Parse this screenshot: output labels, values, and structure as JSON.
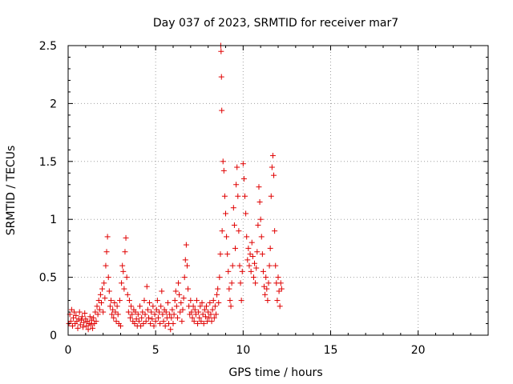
{
  "chart_data": {
    "type": "scatter",
    "title": "Day 037 of 2023, SRMTID for receiver mar7",
    "xlabel": "GPS time / hours",
    "ylabel": "SRMTID / TECUs",
    "xlim": [
      0,
      24
    ],
    "ylim": [
      0,
      2.5
    ],
    "xticks": [
      0,
      5,
      10,
      15,
      20
    ],
    "xtick_labels": [
      "0",
      "5",
      "10",
      "15",
      "20"
    ],
    "yticks": [
      0,
      0.5,
      1,
      1.5,
      2,
      2.5
    ],
    "ytick_labels": [
      "0",
      "0.5",
      "1",
      "1.5",
      "2",
      "2.5"
    ],
    "grid": true,
    "marker": "plus",
    "color": "#e00000",
    "series": [
      {
        "name": "SRMTID",
        "points": [
          [
            0.05,
            0.1
          ],
          [
            0.1,
            0.18
          ],
          [
            0.15,
            0.12
          ],
          [
            0.2,
            0.22
          ],
          [
            0.25,
            0.08
          ],
          [
            0.3,
            0.15
          ],
          [
            0.35,
            0.2
          ],
          [
            0.4,
            0.1
          ],
          [
            0.45,
            0.17
          ],
          [
            0.5,
            0.12
          ],
          [
            0.55,
            0.06
          ],
          [
            0.6,
            0.14
          ],
          [
            0.65,
            0.2
          ],
          [
            0.7,
            0.09
          ],
          [
            0.75,
            0.13
          ],
          [
            0.8,
            0.16
          ],
          [
            0.85,
            0.07
          ],
          [
            0.9,
            0.11
          ],
          [
            0.95,
            0.19
          ],
          [
            1.0,
            0.14
          ],
          [
            1.05,
            0.08
          ],
          [
            1.1,
            0.12
          ],
          [
            1.15,
            0.05
          ],
          [
            1.2,
            0.1
          ],
          [
            1.25,
            0.16
          ],
          [
            1.3,
            0.09
          ],
          [
            1.35,
            0.13
          ],
          [
            1.4,
            0.06
          ],
          [
            1.45,
            0.15
          ],
          [
            1.5,
            0.1
          ],
          [
            1.55,
            0.2
          ],
          [
            1.6,
            0.12
          ],
          [
            1.65,
            0.25
          ],
          [
            1.7,
            0.18
          ],
          [
            1.75,
            0.3
          ],
          [
            1.8,
            0.22
          ],
          [
            1.85,
            0.35
          ],
          [
            1.9,
            0.28
          ],
          [
            1.95,
            0.4
          ],
          [
            2.0,
            0.2
          ],
          [
            2.05,
            0.45
          ],
          [
            2.1,
            0.32
          ],
          [
            2.15,
            0.6
          ],
          [
            2.2,
            0.72
          ],
          [
            2.25,
            0.85
          ],
          [
            2.3,
            0.5
          ],
          [
            2.35,
            0.38
          ],
          [
            2.4,
            0.25
          ],
          [
            2.45,
            0.3
          ],
          [
            2.5,
            0.18
          ],
          [
            2.55,
            0.22
          ],
          [
            2.6,
            0.15
          ],
          [
            2.65,
            0.28
          ],
          [
            2.7,
            0.2
          ],
          [
            2.75,
            0.12
          ],
          [
            2.8,
            0.25
          ],
          [
            2.85,
            0.18
          ],
          [
            2.9,
            0.1
          ],
          [
            2.95,
            0.3
          ],
          [
            3.0,
            0.08
          ],
          [
            3.05,
            0.45
          ],
          [
            3.1,
            0.6
          ],
          [
            3.15,
            0.55
          ],
          [
            3.2,
            0.4
          ],
          [
            3.25,
            0.72
          ],
          [
            3.3,
            0.84
          ],
          [
            3.35,
            0.5
          ],
          [
            3.4,
            0.35
          ],
          [
            3.45,
            0.2
          ],
          [
            3.5,
            0.3
          ],
          [
            3.55,
            0.15
          ],
          [
            3.6,
            0.25
          ],
          [
            3.65,
            0.18
          ],
          [
            3.7,
            0.12
          ],
          [
            3.75,
            0.22
          ],
          [
            3.8,
            0.1
          ],
          [
            3.85,
            0.2
          ],
          [
            3.9,
            0.14
          ],
          [
            3.95,
            0.08
          ],
          [
            4.0,
            0.18
          ],
          [
            4.05,
            0.12
          ],
          [
            4.1,
            0.25
          ],
          [
            4.15,
            0.08
          ],
          [
            4.2,
            0.15
          ],
          [
            4.25,
            0.2
          ],
          [
            4.3,
            0.1
          ],
          [
            4.35,
            0.3
          ],
          [
            4.4,
            0.18
          ],
          [
            4.45,
            0.12
          ],
          [
            4.5,
            0.42
          ],
          [
            4.55,
            0.22
          ],
          [
            4.6,
            0.15
          ],
          [
            4.65,
            0.28
          ],
          [
            4.7,
            0.1
          ],
          [
            4.75,
            0.2
          ],
          [
            4.8,
            0.14
          ],
          [
            4.85,
            0.25
          ],
          [
            4.9,
            0.08
          ],
          [
            4.95,
            0.18
          ],
          [
            5.0,
            0.12
          ],
          [
            5.05,
            0.22
          ],
          [
            5.1,
            0.3
          ],
          [
            5.15,
            0.15
          ],
          [
            5.2,
            0.2
          ],
          [
            5.25,
            0.1
          ],
          [
            5.3,
            0.25
          ],
          [
            5.35,
            0.38
          ],
          [
            5.4,
            0.18
          ],
          [
            5.45,
            0.12
          ],
          [
            5.5,
            0.22
          ],
          [
            5.55,
            0.08
          ],
          [
            5.6,
            0.2
          ],
          [
            5.65,
            0.15
          ],
          [
            5.7,
            0.28
          ],
          [
            5.75,
            0.1
          ],
          [
            5.8,
            0.18
          ],
          [
            5.85,
            0.05
          ],
          [
            5.9,
            0.15
          ],
          [
            5.95,
            0.22
          ],
          [
            6.0,
            0.1
          ],
          [
            6.05,
            0.18
          ],
          [
            6.1,
            0.3
          ],
          [
            6.15,
            0.38
          ],
          [
            6.2,
            0.25
          ],
          [
            6.25,
            0.15
          ],
          [
            6.3,
            0.45
          ],
          [
            6.35,
            0.35
          ],
          [
            6.4,
            0.2
          ],
          [
            6.45,
            0.28
          ],
          [
            6.5,
            0.12
          ],
          [
            6.55,
            0.22
          ],
          [
            6.6,
            0.32
          ],
          [
            6.65,
            0.5
          ],
          [
            6.7,
            0.65
          ],
          [
            6.75,
            0.78
          ],
          [
            6.8,
            0.6
          ],
          [
            6.85,
            0.4
          ],
          [
            6.9,
            0.25
          ],
          [
            6.95,
            0.18
          ],
          [
            7.0,
            0.3
          ],
          [
            7.05,
            0.2
          ],
          [
            7.1,
            0.15
          ],
          [
            7.15,
            0.25
          ],
          [
            7.2,
            0.12
          ],
          [
            7.25,
            0.22
          ],
          [
            7.3,
            0.18
          ],
          [
            7.35,
            0.3
          ],
          [
            7.4,
            0.1
          ],
          [
            7.45,
            0.2
          ],
          [
            7.5,
            0.15
          ],
          [
            7.55,
            0.25
          ],
          [
            7.6,
            0.12
          ],
          [
            7.65,
            0.28
          ],
          [
            7.7,
            0.18
          ],
          [
            7.75,
            0.1
          ],
          [
            7.8,
            0.22
          ],
          [
            7.85,
            0.16
          ],
          [
            7.9,
            0.25
          ],
          [
            7.95,
            0.12
          ],
          [
            8.0,
            0.2
          ],
          [
            8.05,
            0.15
          ],
          [
            8.1,
            0.28
          ],
          [
            8.15,
            0.18
          ],
          [
            8.2,
            0.12
          ],
          [
            8.25,
            0.22
          ],
          [
            8.3,
            0.3
          ],
          [
            8.35,
            0.15
          ],
          [
            8.4,
            0.25
          ],
          [
            8.45,
            0.18
          ],
          [
            8.5,
            0.35
          ],
          [
            8.55,
            0.4
          ],
          [
            8.6,
            0.28
          ],
          [
            8.65,
            0.5
          ],
          [
            8.7,
            0.7
          ],
          [
            8.72,
            2.5
          ],
          [
            8.74,
            2.45
          ],
          [
            8.76,
            2.23
          ],
          [
            8.78,
            1.94
          ],
          [
            8.8,
            0.9
          ],
          [
            8.85,
            1.5
          ],
          [
            8.9,
            1.42
          ],
          [
            8.95,
            1.2
          ],
          [
            9.0,
            1.05
          ],
          [
            9.05,
            0.85
          ],
          [
            9.1,
            0.7
          ],
          [
            9.15,
            0.55
          ],
          [
            9.2,
            0.4
          ],
          [
            9.25,
            0.3
          ],
          [
            9.3,
            0.25
          ],
          [
            9.35,
            0.45
          ],
          [
            9.4,
            0.6
          ],
          [
            9.45,
            1.1
          ],
          [
            9.5,
            0.95
          ],
          [
            9.55,
            0.75
          ],
          [
            9.6,
            1.3
          ],
          [
            9.65,
            1.45
          ],
          [
            9.7,
            1.2
          ],
          [
            9.75,
            0.9
          ],
          [
            9.8,
            0.6
          ],
          [
            9.85,
            0.45
          ],
          [
            9.9,
            0.3
          ],
          [
            9.95,
            0.55
          ],
          [
            10.0,
            1.48
          ],
          [
            10.05,
            1.35
          ],
          [
            10.1,
            1.2
          ],
          [
            10.15,
            1.05
          ],
          [
            10.2,
            0.85
          ],
          [
            10.25,
            0.65
          ],
          [
            10.3,
            0.75
          ],
          [
            10.35,
            0.6
          ],
          [
            10.4,
            0.7
          ],
          [
            10.45,
            0.55
          ],
          [
            10.5,
            0.8
          ],
          [
            10.55,
            0.68
          ],
          [
            10.6,
            0.5
          ],
          [
            10.65,
            0.62
          ],
          [
            10.7,
            0.45
          ],
          [
            10.75,
            0.58
          ],
          [
            10.8,
            0.72
          ],
          [
            10.85,
            0.95
          ],
          [
            10.9,
            1.28
          ],
          [
            10.95,
            1.15
          ],
          [
            11.0,
            1.0
          ],
          [
            11.05,
            0.85
          ],
          [
            11.1,
            0.7
          ],
          [
            11.15,
            0.55
          ],
          [
            11.2,
            0.42
          ],
          [
            11.25,
            0.35
          ],
          [
            11.3,
            0.5
          ],
          [
            11.35,
            0.4
          ],
          [
            11.4,
            0.3
          ],
          [
            11.45,
            0.45
          ],
          [
            11.5,
            0.6
          ],
          [
            11.55,
            0.75
          ],
          [
            11.6,
            1.2
          ],
          [
            11.65,
            1.45
          ],
          [
            11.7,
            1.55
          ],
          [
            11.75,
            1.38
          ],
          [
            11.8,
            0.9
          ],
          [
            11.85,
            0.6
          ],
          [
            11.9,
            0.45
          ],
          [
            11.95,
            0.3
          ],
          [
            12.0,
            0.5
          ],
          [
            12.05,
            0.38
          ],
          [
            12.1,
            0.25
          ],
          [
            12.15,
            0.45
          ],
          [
            12.2,
            0.4
          ]
        ]
      }
    ]
  }
}
